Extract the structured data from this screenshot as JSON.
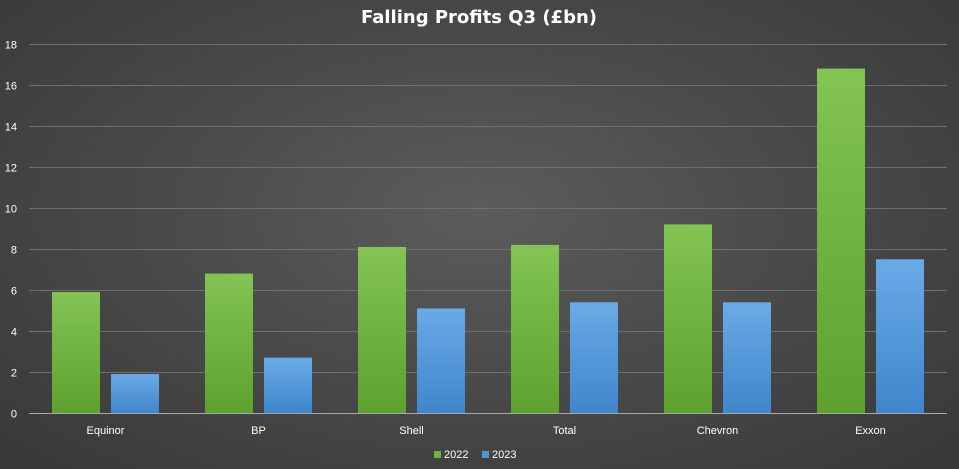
{
  "chart_data": {
    "type": "bar",
    "title": "Falling Profits Q3 (£bn)",
    "xlabel": "",
    "ylabel": "",
    "categories": [
      "Equinor",
      "BP",
      "Shell",
      "Total",
      "Chevron",
      "Exxon"
    ],
    "series": [
      {
        "name": "2022",
        "color": "#6fb33f",
        "values": [
          5.9,
          6.8,
          8.1,
          8.2,
          9.2,
          16.8
        ]
      },
      {
        "name": "2023",
        "color": "#4f94d6",
        "values": [
          1.9,
          2.7,
          5.1,
          5.4,
          5.4,
          7.5
        ]
      }
    ],
    "ylim": [
      0,
      18
    ],
    "yticks": [
      0,
      2,
      4,
      6,
      8,
      10,
      12,
      14,
      16,
      18
    ],
    "grid": true,
    "legend_position": "bottom-center"
  }
}
